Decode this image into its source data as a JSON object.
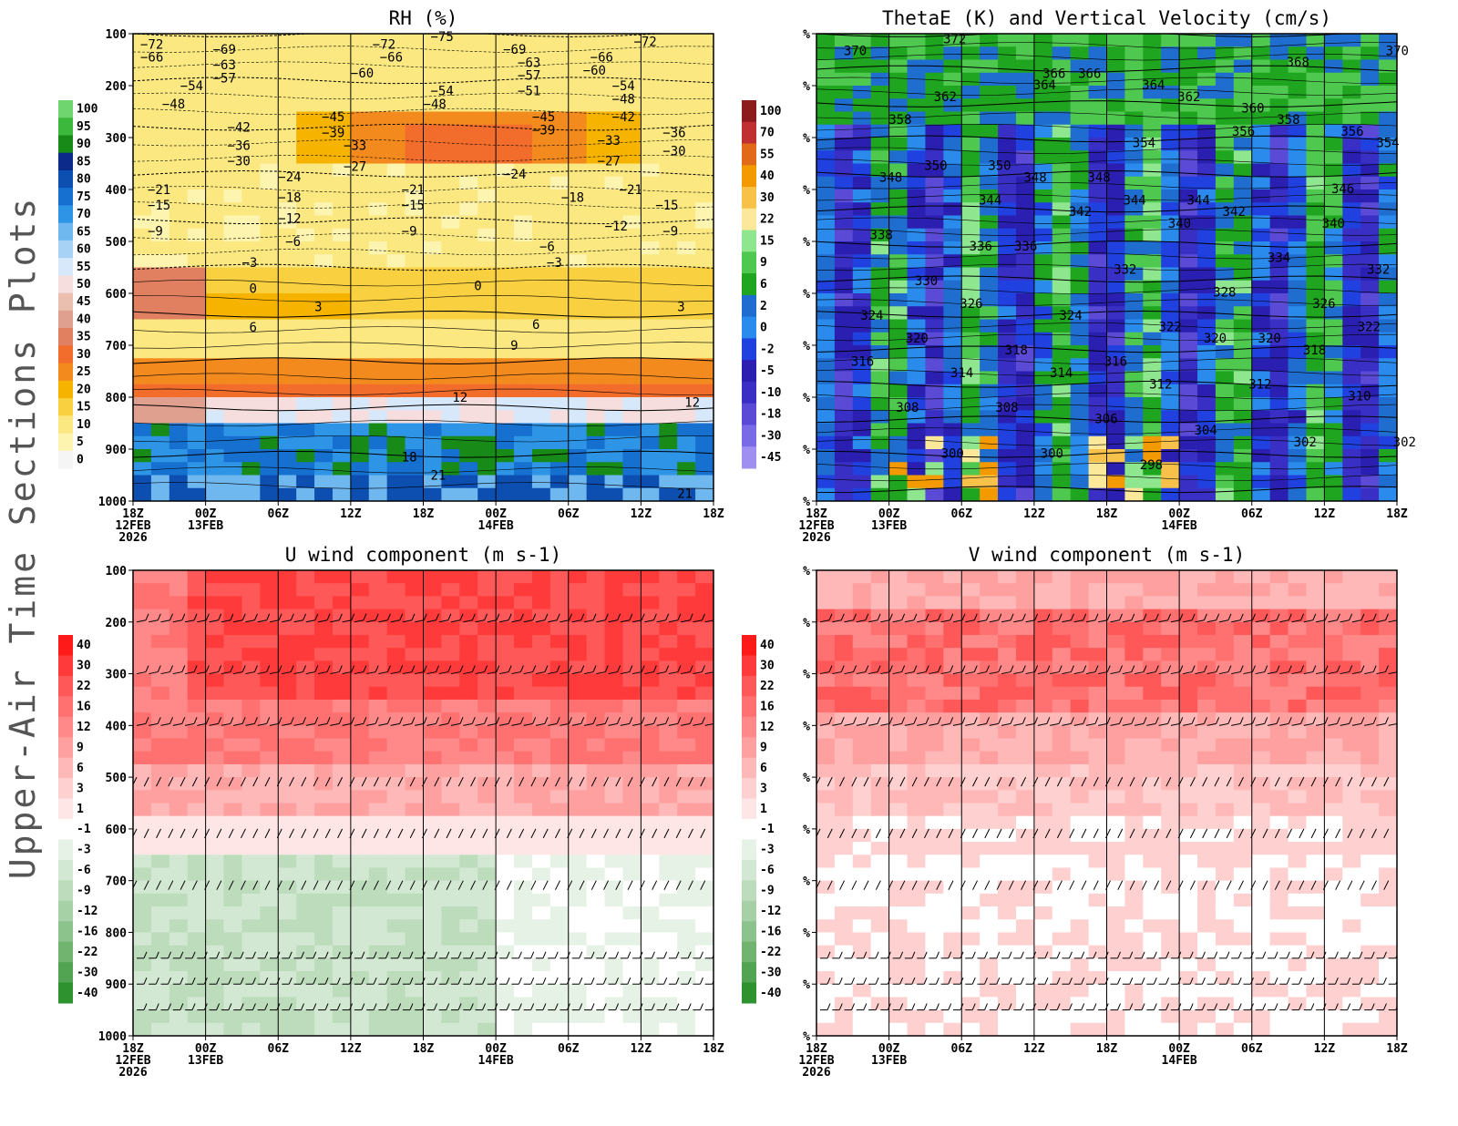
{
  "figure_title": "Upper-Air Time Sections Plots",
  "chart_data": [
    {
      "id": "rh",
      "type": "heatmap",
      "title": "RH (%)",
      "overlay": "Temperature contours (negated labels as plotted)",
      "ylabel": "pressure (hPa)",
      "y_ticks": [
        "100",
        "200",
        "300",
        "400",
        "500",
        "600",
        "700",
        "800",
        "900",
        "1000"
      ],
      "ylim": [
        1000,
        100
      ],
      "x_ticks": [
        "18Z",
        "00Z",
        "06Z",
        "12Z",
        "18Z",
        "00Z",
        "06Z",
        "12Z",
        "18Z"
      ],
      "x_sublabels": {
        "0": [
          "12FEB",
          "2026"
        ],
        "1": [
          "13FEB"
        ],
        "5": [
          "14FEB"
        ]
      },
      "colorbar": {
        "levels": [
          "100",
          "95",
          "90",
          "85",
          "80",
          "75",
          "70",
          "65",
          "60",
          "55",
          "50",
          "45",
          "40",
          "35",
          "30",
          "25",
          "20",
          "15",
          "10",
          "5",
          "0"
        ],
        "colors": [
          "#6fd66f",
          "#3cb83c",
          "#178a17",
          "#0b2a8a",
          "#0c4fb0",
          "#1670d0",
          "#2e95e6",
          "#6fb7ef",
          "#a8d2f5",
          "#d6e8fa",
          "#f6dede",
          "#eabfb0",
          "#e0a090",
          "#e08060",
          "#f26c2c",
          "#f28a1e",
          "#f6b400",
          "#f9d040",
          "#fbe880",
          "#fdf4b0",
          "#f5f5f5"
        ]
      },
      "contour_labels": [
        {
          "t": -72,
          "h": 0,
          "p": 120
        },
        {
          "t": -66,
          "h": 0,
          "p": 145
        },
        {
          "t": -69,
          "h": 1,
          "p": 130
        },
        {
          "t": -63,
          "h": 1,
          "p": 160
        },
        {
          "t": -57,
          "h": 1,
          "p": 185
        },
        {
          "t": -54,
          "h": 0.55,
          "p": 200
        },
        {
          "t": -48,
          "h": 0.3,
          "p": 235
        },
        {
          "t": -42,
          "h": 1.2,
          "p": 280
        },
        {
          "t": -36,
          "h": 1.2,
          "p": 315
        },
        {
          "t": -30,
          "h": 1.2,
          "p": 345
        },
        {
          "t": -72,
          "h": 3.2,
          "p": 120
        },
        {
          "t": -66,
          "h": 3.3,
          "p": 145
        },
        {
          "t": -60,
          "h": 2.9,
          "p": 175
        },
        {
          "t": -75,
          "h": 4,
          "p": 105
        },
        {
          "t": -54,
          "h": 4,
          "p": 210
        },
        {
          "t": -48,
          "h": 3.9,
          "p": 235
        },
        {
          "t": -45,
          "h": 2.5,
          "p": 260
        },
        {
          "t": -39,
          "h": 2.5,
          "p": 290
        },
        {
          "t": -33,
          "h": 2.8,
          "p": 315
        },
        {
          "t": -27,
          "h": 2.8,
          "p": 355
        },
        {
          "t": -24,
          "h": 1.9,
          "p": 375
        },
        {
          "t": -21,
          "h": 0.1,
          "p": 400
        },
        {
          "t": -15,
          "h": 0.1,
          "p": 430
        },
        {
          "t": -9,
          "h": 0.1,
          "p": 480
        },
        {
          "t": -18,
          "h": 1.9,
          "p": 415
        },
        {
          "t": -12,
          "h": 1.9,
          "p": 455
        },
        {
          "t": -6,
          "h": 2,
          "p": 500
        },
        {
          "t": -21,
          "h": 3.6,
          "p": 400
        },
        {
          "t": -15,
          "h": 3.6,
          "p": 430
        },
        {
          "t": -9,
          "h": 3.6,
          "p": 480
        },
        {
          "t": -69,
          "h": 5,
          "p": 130
        },
        {
          "t": -63,
          "h": 5.2,
          "p": 155
        },
        {
          "t": -57,
          "h": 5.2,
          "p": 180
        },
        {
          "t": -51,
          "h": 5.2,
          "p": 210
        },
        {
          "t": -45,
          "h": 5.4,
          "p": 260
        },
        {
          "t": -39,
          "h": 5.4,
          "p": 285
        },
        {
          "t": -66,
          "h": 6.2,
          "p": 145
        },
        {
          "t": -60,
          "h": 6.1,
          "p": 170
        },
        {
          "t": -54,
          "h": 6.5,
          "p": 200
        },
        {
          "t": -48,
          "h": 6.5,
          "p": 225
        },
        {
          "t": -42,
          "h": 6.5,
          "p": 260
        },
        {
          "t": -36,
          "h": 7.2,
          "p": 290
        },
        {
          "t": -30,
          "h": 7.2,
          "p": 325
        },
        {
          "t": -33,
          "h": 6.3,
          "p": 305
        },
        {
          "t": -27,
          "h": 6.3,
          "p": 345
        },
        {
          "t": -24,
          "h": 5,
          "p": 370
        },
        {
          "t": -21,
          "h": 6.6,
          "p": 400
        },
        {
          "t": -18,
          "h": 5.8,
          "p": 415
        },
        {
          "t": -15,
          "h": 7.1,
          "p": 430
        },
        {
          "t": -12,
          "h": 6.4,
          "p": 470
        },
        {
          "t": -9,
          "h": 7.2,
          "p": 480
        },
        {
          "t": -72,
          "h": 6.8,
          "p": 115
        },
        {
          "t": -6,
          "h": 5.5,
          "p": 510
        },
        {
          "t": -3,
          "h": 5.6,
          "p": 540
        },
        {
          "t": -3,
          "h": 1.4,
          "p": 540
        },
        {
          "t": 0,
          "h": 1.5,
          "p": 590
        },
        {
          "t": 0,
          "h": 4.6,
          "p": 585
        },
        {
          "t": 3,
          "h": 2.4,
          "p": 625
        },
        {
          "t": 3,
          "h": 7.4,
          "p": 625
        },
        {
          "t": 6,
          "h": 1.5,
          "p": 665
        },
        {
          "t": 6,
          "h": 5.4,
          "p": 660
        },
        {
          "t": 9,
          "h": 5.1,
          "p": 700
        },
        {
          "t": 12,
          "h": 4.3,
          "p": 800
        },
        {
          "t": 12,
          "h": 7.5,
          "p": 810
        },
        {
          "t": 18,
          "h": 3.6,
          "p": 915
        },
        {
          "t": 21,
          "h": 4,
          "p": 950
        },
        {
          "t": 21,
          "h": 7.4,
          "p": 985
        }
      ]
    },
    {
      "id": "thetae",
      "type": "heatmap",
      "title": "ThetaE (K) and Vertical Velocity (cm/s)",
      "y_ticks": [
        "%",
        "%",
        "%",
        "%",
        "%",
        "%",
        "%",
        "%",
        "%",
        "%"
      ],
      "x_ticks": [
        "18Z",
        "00Z",
        "06Z",
        "12Z",
        "18Z",
        "00Z",
        "06Z",
        "12Z",
        "18Z"
      ],
      "x_sublabels": {
        "0": [
          "12FEB",
          "2026"
        ],
        "1": [
          "13FEB"
        ],
        "5": [
          "14FEB"
        ]
      },
      "colorbar": {
        "levels": [
          "100",
          "70",
          "55",
          "40",
          "30",
          "22",
          "15",
          "9",
          "6",
          "2",
          "0",
          "-2",
          "-5",
          "-10",
          "-18",
          "-30",
          "-45"
        ],
        "colors": [
          "#8c1c1c",
          "#c03030",
          "#e06a1a",
          "#f39a00",
          "#f8c24a",
          "#fbe89a",
          "#8ee68e",
          "#4fc84f",
          "#1fa51f",
          "#1f6ecf",
          "#2a8bec",
          "#2040e0",
          "#2a1fb0",
          "#3a2fc4",
          "#5a4ad6",
          "#7b6ae6",
          "#9f8ff0"
        ]
      },
      "contour_labels": [
        370,
        372,
        366,
        364,
        360,
        356,
        358,
        350,
        348,
        344,
        368,
        370,
        362,
        364,
        354,
        356,
        346,
        348,
        344,
        366,
        362,
        358,
        354,
        350,
        348,
        344,
        342,
        340,
        338,
        336,
        342,
        340,
        334,
        332,
        330,
        336,
        332,
        328,
        326,
        324,
        326,
        324,
        322,
        320,
        322,
        320,
        318,
        316,
        320,
        318,
        316,
        314,
        314,
        312,
        312,
        310,
        308,
        308,
        306,
        304,
        302,
        302,
        300,
        300,
        298
      ]
    },
    {
      "id": "uwind",
      "type": "heatmap",
      "title": "U wind component (m s-1)",
      "y_ticks": [
        "100",
        "200",
        "300",
        "400",
        "500",
        "600",
        "700",
        "800",
        "900",
        "1000"
      ],
      "x_ticks": [
        "18Z",
        "00Z",
        "06Z",
        "12Z",
        "18Z",
        "00Z",
        "06Z",
        "12Z",
        "18Z"
      ],
      "x_sublabels": {
        "0": [
          "12FEB",
          "2026"
        ],
        "1": [
          "13FEB"
        ],
        "5": [
          "14FEB"
        ]
      },
      "colorbar": {
        "levels": [
          "40",
          "30",
          "22",
          "16",
          "12",
          "9",
          "6",
          "3",
          "1",
          "-1",
          "-3",
          "-6",
          "-9",
          "-12",
          "-16",
          "-22",
          "-30",
          "-40"
        ],
        "colors": [
          "#ff1a1a",
          "#ff3a3a",
          "#ff5858",
          "#ff7070",
          "#ff8888",
          "#ffa0a0",
          "#ffb8b8",
          "#ffd0d0",
          "#ffe6e6",
          "#ffffff",
          "#e6f2e6",
          "#d2e8d2",
          "#bcdcbc",
          "#a6d0a6",
          "#8cc28c",
          "#70b470",
          "#52a452",
          "#2e922e"
        ]
      },
      "wind_barb_levels": [
        200,
        300,
        400,
        500,
        600,
        700,
        850,
        900,
        950
      ]
    },
    {
      "id": "vwind",
      "type": "heatmap",
      "title": "V wind component (m s-1)",
      "y_ticks": [
        "%",
        "%",
        "%",
        "%",
        "%",
        "%",
        "%",
        "%",
        "%",
        "%"
      ],
      "x_ticks": [
        "18Z",
        "00Z",
        "06Z",
        "12Z",
        "18Z",
        "00Z",
        "06Z",
        "12Z",
        "18Z"
      ],
      "x_sublabels": {
        "0": [
          "12FEB",
          "2026"
        ],
        "1": [
          "13FEB"
        ],
        "5": [
          "14FEB"
        ]
      },
      "colorbar": {
        "levels": [
          "40",
          "30",
          "22",
          "16",
          "12",
          "9",
          "6",
          "3",
          "1",
          "-1",
          "-3",
          "-6",
          "-9",
          "-12",
          "-16",
          "-22",
          "-30",
          "-40"
        ],
        "colors": [
          "#ff1a1a",
          "#ff3a3a",
          "#ff5858",
          "#ff7070",
          "#ff8888",
          "#ffa0a0",
          "#ffb8b8",
          "#ffd0d0",
          "#ffe6e6",
          "#ffffff",
          "#e6f2e6",
          "#d2e8d2",
          "#bcdcbc",
          "#a6d0a6",
          "#8cc28c",
          "#70b470",
          "#52a452",
          "#2e922e"
        ]
      },
      "wind_barb_levels": [
        200,
        300,
        400,
        500,
        600,
        700,
        850,
        900,
        950
      ]
    }
  ]
}
